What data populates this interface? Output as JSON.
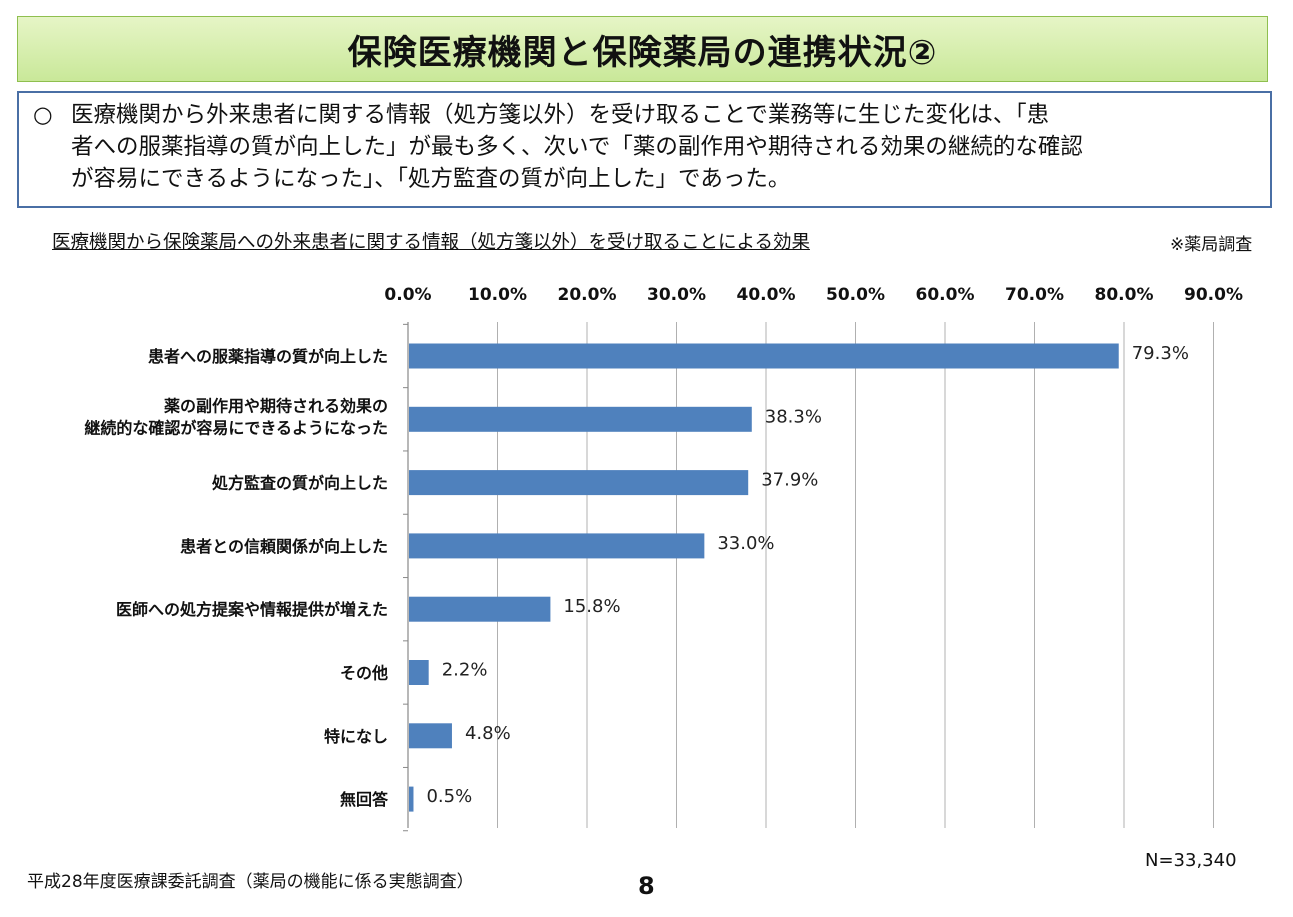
{
  "title": "保険医療機関と保険薬局の連携状況②",
  "summary": {
    "bullet": "○",
    "lines": [
      "医療機関から外来患者に関する情報（処方箋以外）を受け取ることで業務等に生じた変化は、「患",
      "者への服薬指導の質が向上した」が最も多く、次いで「薬の副作用や期待される効果の継続的な確認",
      "が容易にできるようになった」、「処方監査の質が向上した」であった。"
    ]
  },
  "survey_note": "※薬局調査",
  "n_note": "N=33,340",
  "source_note": "平成28年度医療課委託調査（薬局の機能に係る実態調査）",
  "page_number": "8",
  "colors": {
    "bar": "#4f81bd",
    "grid": "#b0b0b0"
  },
  "chart_data": {
    "type": "bar",
    "orientation": "horizontal",
    "title": "医療機関から保険薬局への外来患者に関する情報（処方箋以外）を受け取ることによる効果",
    "xlim": [
      0,
      90
    ],
    "xticks": [
      0,
      10,
      20,
      30,
      40,
      50,
      60,
      70,
      80,
      90
    ],
    "xtick_labels": [
      "0.0%",
      "10.0%",
      "20.0%",
      "30.0%",
      "40.0%",
      "50.0%",
      "60.0%",
      "70.0%",
      "80.0%",
      "90.0%"
    ],
    "grid": true,
    "categories": [
      [
        "患者への服薬指導の質が向上した"
      ],
      [
        "薬の副作用や期待される効果の",
        "継続的な確認が容易にできるようになった"
      ],
      [
        "処方監査の質が向上した"
      ],
      [
        "患者との信頼関係が向上した"
      ],
      [
        "医師への処方提案や情報提供が増えた"
      ],
      [
        "その他"
      ],
      [
        "特になし"
      ],
      [
        "無回答"
      ]
    ],
    "values": [
      79.3,
      38.3,
      37.9,
      33.0,
      15.8,
      2.2,
      4.8,
      0.5
    ],
    "value_labels": [
      "79.3%",
      "38.3%",
      "37.9%",
      "33.0%",
      "15.8%",
      "2.2%",
      "4.8%",
      "0.5%"
    ]
  }
}
